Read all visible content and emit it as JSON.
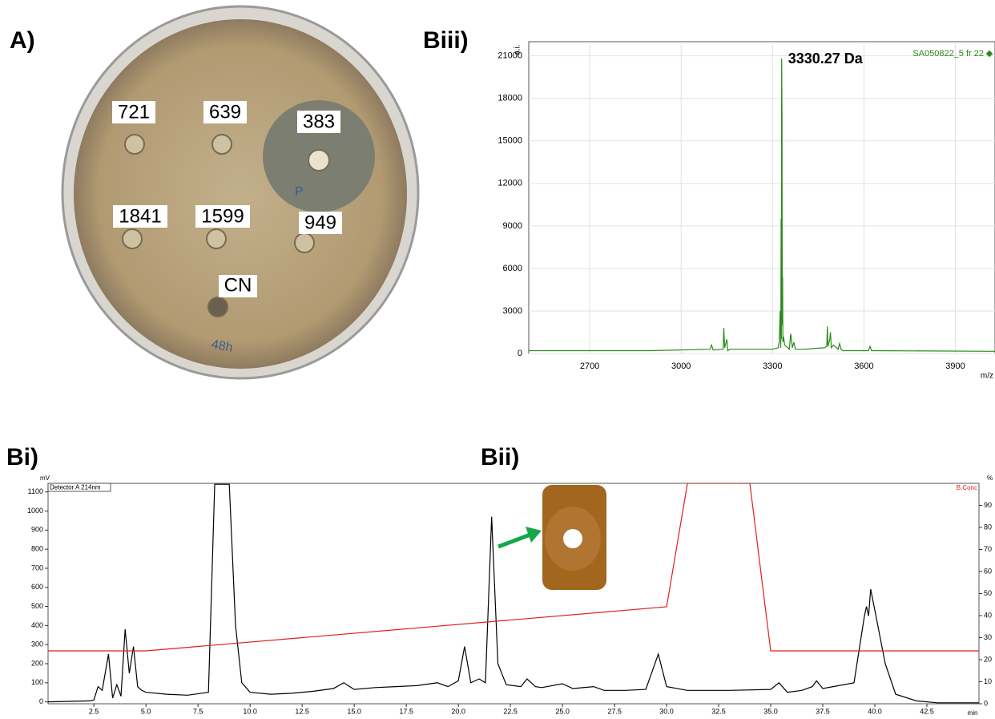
{
  "panels": {
    "A": "A)",
    "Biii": "Biii)",
    "Bi": "Bi)",
    "Bii": "Bii)"
  },
  "plate": {
    "labels": [
      "721",
      "639",
      "383",
      "1841",
      "1599",
      "949",
      "CN"
    ],
    "handwriting": [
      "P",
      "48h"
    ]
  },
  "chart_data": [
    {
      "type": "line",
      "x_label": "m/z",
      "y_label": "a.i.",
      "annotation": "3330.27 Da",
      "xlim": [
        2500,
        4030
      ],
      "ylim": [
        0,
        22000
      ],
      "xticks": [
        2700,
        3000,
        3300,
        3600,
        3900
      ],
      "yticks": [
        0,
        3000,
        6000,
        9000,
        12000,
        15000,
        18000,
        21000
      ],
      "grid": true,
      "series": [
        {
          "name": "SA050822_5 fr 22",
          "color": "#2a8a1a",
          "x": [
            2500,
            2900,
            3095,
            3100,
            3105,
            3138,
            3140,
            3143,
            3150,
            3153,
            3160,
            3300,
            3318,
            3322,
            3325,
            3327,
            3328,
            3329,
            3330,
            3331,
            3332,
            3333,
            3334,
            3336,
            3340,
            3355,
            3360,
            3365,
            3370,
            3375,
            3400,
            3470,
            3478,
            3480,
            3482,
            3488,
            3490,
            3493,
            3500,
            3515,
            3520,
            3525,
            3530,
            3615,
            3620,
            3625,
            4030
          ],
          "values": [
            200,
            200,
            300,
            600,
            250,
            300,
            1800,
            400,
            1000,
            200,
            300,
            300,
            400,
            800,
            3000,
            400,
            9500,
            1000,
            20800,
            17000,
            2000,
            5400,
            800,
            1200,
            600,
            300,
            1400,
            400,
            800,
            300,
            300,
            400,
            500,
            1900,
            500,
            1000,
            1500,
            400,
            600,
            300,
            700,
            300,
            200,
            200,
            500,
            200,
            150
          ]
        }
      ]
    },
    {
      "type": "line",
      "title": "Detector A 214nm",
      "x_label": "min",
      "y_label": "mV",
      "y2_label": "%",
      "xlim": [
        0.3,
        45
      ],
      "ylim": [
        -10,
        1145
      ],
      "y2lim": [
        0,
        100
      ],
      "xticks": [
        2.5,
        {
          "value": 5,
          "label": "5.0"
        },
        7.5,
        {
          "value": 10,
          "label": "10.0"
        },
        12.5,
        {
          "value": 15,
          "label": "15.0"
        },
        17.5,
        {
          "value": 20,
          "label": "20.0"
        },
        22.5,
        {
          "value": 25,
          "label": "25.0"
        },
        27.5,
        {
          "value": 30,
          "label": "30.0"
        },
        32.5,
        {
          "value": 35,
          "label": "35.0"
        },
        37.5,
        {
          "value": 40,
          "label": "40.0"
        },
        42.5
      ],
      "yticks": [
        0,
        100,
        200,
        300,
        400,
        500,
        600,
        700,
        800,
        900,
        1000,
        1100
      ],
      "y2ticks": [
        0,
        10,
        20,
        30,
        40,
        50,
        60,
        70,
        80,
        90
      ],
      "grid": false,
      "series": [
        {
          "name": "Detector A 214nm",
          "color": "#000000",
          "x": [
            0.3,
            2.3,
            2.5,
            2.7,
            2.9,
            3.2,
            3.4,
            3.6,
            3.8,
            4.0,
            4.2,
            4.4,
            4.6,
            4.8,
            5,
            6,
            7,
            8,
            8.3,
            8.6,
            9.0,
            9.3,
            9.6,
            10,
            11,
            12,
            13,
            14,
            14.5,
            15,
            16,
            17,
            18,
            19,
            19.5,
            20,
            20.3,
            20.6,
            21,
            21.3,
            21.6,
            21.9,
            22.3,
            23,
            23.3,
            23.7,
            24,
            25,
            25.5,
            26.5,
            27,
            28,
            29,
            29.6,
            30,
            31,
            32,
            33,
            35,
            35.4,
            35.8,
            36.5,
            37,
            37.2,
            37.5,
            38,
            39,
            39.5,
            39.6,
            39.7,
            39.8,
            40,
            40.5,
            41,
            42,
            43,
            45
          ],
          "values": [
            0,
            5,
            10,
            80,
            60,
            250,
            20,
            90,
            30,
            380,
            150,
            290,
            80,
            60,
            50,
            40,
            35,
            50,
            1140,
            1140,
            1140,
            400,
            100,
            50,
            40,
            45,
            55,
            70,
            100,
            65,
            75,
            80,
            85,
            100,
            80,
            110,
            290,
            100,
            120,
            100,
            970,
            200,
            90,
            80,
            120,
            80,
            75,
            95,
            70,
            80,
            60,
            60,
            65,
            250,
            80,
            60,
            60,
            60,
            65,
            100,
            50,
            60,
            80,
            110,
            70,
            80,
            100,
            450,
            500,
            450,
            590,
            480,
            200,
            40,
            5,
            -5,
            -5
          ]
        },
        {
          "name": "B.Conc",
          "color": "#e0201c",
          "axis": "y2",
          "x": [
            0.3,
            5,
            30,
            31,
            34,
            35,
            45
          ],
          "values": [
            24,
            24,
            44,
            100,
            100,
            24,
            24
          ]
        }
      ]
    }
  ]
}
